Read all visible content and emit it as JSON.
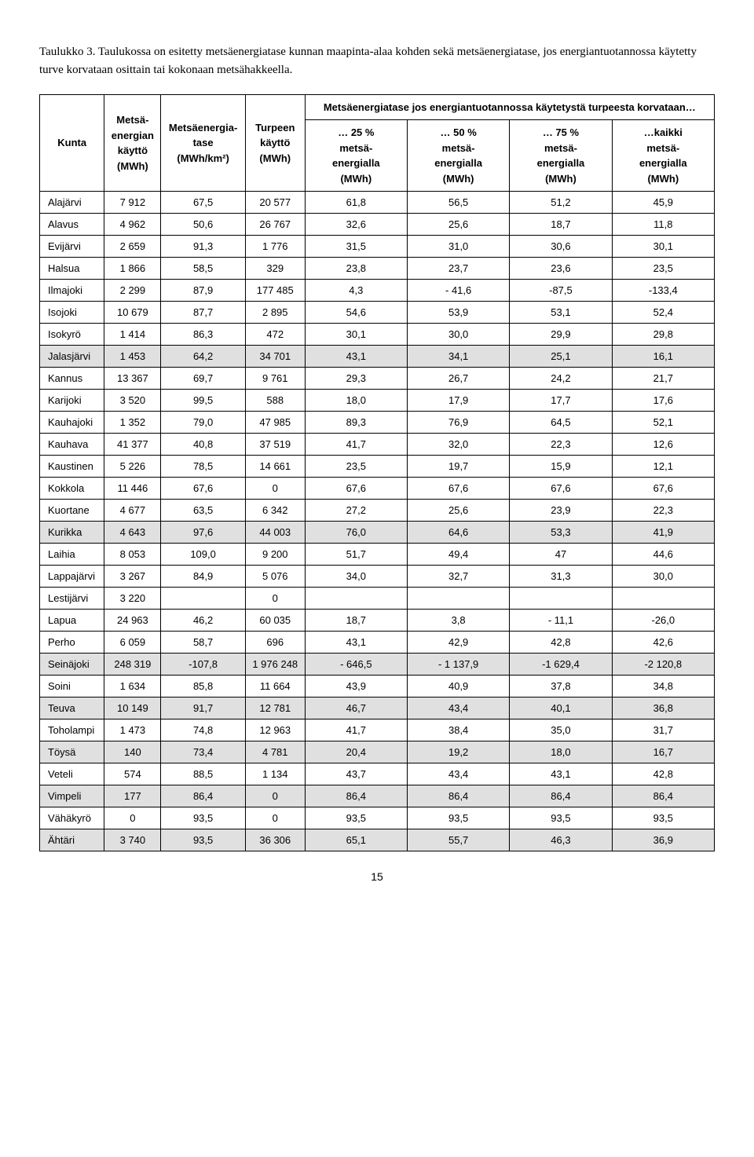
{
  "caption": "Taulukko 3. Taulukossa on esitetty metsäenergiatase kunnan maapinta-alaa kohden sekä metsäenergiatase, jos energiantuotannossa käytetty turve korvataan osittain tai kokonaan metsähakkeella.",
  "superheader": "Metsäenergiatase jos energiantuotannossa käytetystä turpeesta korvataan…",
  "columns": [
    "Kunta",
    "Metsä-\nenergian\nkäyttö\n(MWh)",
    "Metsäenergia-\ntase\n(MWh/km²)",
    "Turpeen\nkäyttö\n(MWh)",
    "… 25 %\nmetsä-\nenergialla\n(MWh)",
    "… 50 %\nmetsä-\nenergialla\n(MWh)",
    "… 75 %\nmetsä-\nenergialla\n(MWh)",
    "…kaikki\nmetsä-\nenergialla\n(MWh)"
  ],
  "rows": [
    {
      "shade": false,
      "cells": [
        "Alajärvi",
        "7 912",
        "67,5",
        "20 577",
        "61,8",
        "56,5",
        "51,2",
        "45,9"
      ]
    },
    {
      "shade": false,
      "cells": [
        "Alavus",
        "4 962",
        "50,6",
        "26 767",
        "32,6",
        "25,6",
        "18,7",
        "11,8"
      ]
    },
    {
      "shade": false,
      "cells": [
        "Evijärvi",
        "2 659",
        "91,3",
        "1 776",
        "31,5",
        "31,0",
        "30,6",
        "30,1"
      ]
    },
    {
      "shade": false,
      "cells": [
        "Halsua",
        "1 866",
        "58,5",
        "329",
        "23,8",
        "23,7",
        "23,6",
        "23,5"
      ]
    },
    {
      "shade": false,
      "cells": [
        "Ilmajoki",
        "2 299",
        "87,9",
        "177 485",
        "4,3",
        "- 41,6",
        "-87,5",
        "-133,4"
      ]
    },
    {
      "shade": false,
      "cells": [
        "Isojoki",
        "10 679",
        "87,7",
        "2 895",
        "54,6",
        "53,9",
        "53,1",
        "52,4"
      ]
    },
    {
      "shade": false,
      "cells": [
        "Isokyrö",
        "1 414",
        "86,3",
        "472",
        "30,1",
        "30,0",
        "29,9",
        "29,8"
      ]
    },
    {
      "shade": true,
      "cells": [
        "Jalasjärvi",
        "1 453",
        "64,2",
        "34 701",
        "43,1",
        "34,1",
        "25,1",
        "16,1"
      ]
    },
    {
      "shade": false,
      "cells": [
        "Kannus",
        "13 367",
        "69,7",
        "9 761",
        "29,3",
        "26,7",
        "24,2",
        "21,7"
      ]
    },
    {
      "shade": false,
      "cells": [
        "Karijoki",
        "3 520",
        "99,5",
        "588",
        "18,0",
        "17,9",
        "17,7",
        "17,6"
      ]
    },
    {
      "shade": false,
      "cells": [
        "Kauhajoki",
        "1 352",
        "79,0",
        "47 985",
        "89,3",
        "76,9",
        "64,5",
        "52,1"
      ]
    },
    {
      "shade": false,
      "cells": [
        "Kauhava",
        "41 377",
        "40,8",
        "37 519",
        "41,7",
        "32,0",
        "22,3",
        "12,6"
      ]
    },
    {
      "shade": false,
      "cells": [
        "Kaustinen",
        "5 226",
        "78,5",
        "14 661",
        "23,5",
        "19,7",
        "15,9",
        "12,1"
      ]
    },
    {
      "shade": false,
      "cells": [
        "Kokkola",
        "11 446",
        "67,6",
        "0",
        "67,6",
        "67,6",
        "67,6",
        "67,6"
      ]
    },
    {
      "shade": false,
      "cells": [
        "Kuortane",
        "4 677",
        "63,5",
        "6 342",
        "27,2",
        "25,6",
        "23,9",
        "22,3"
      ]
    },
    {
      "shade": true,
      "cells": [
        "Kurikka",
        "4 643",
        "97,6",
        "44 003",
        "76,0",
        "64,6",
        "53,3",
        "41,9"
      ]
    },
    {
      "shade": false,
      "cells": [
        "Laihia",
        "8 053",
        "109,0",
        "9 200",
        "51,7",
        "49,4",
        "47",
        "44,6"
      ]
    },
    {
      "shade": false,
      "cells": [
        "Lappajärvi",
        "3 267",
        "84,9",
        "5 076",
        "34,0",
        "32,7",
        "31,3",
        "30,0"
      ]
    },
    {
      "shade": false,
      "cells": [
        "Lestijärvi",
        "3 220",
        "",
        "0",
        "",
        "",
        "",
        ""
      ]
    },
    {
      "shade": false,
      "cells": [
        "Lapua",
        "24 963",
        "46,2",
        "60 035",
        "18,7",
        "3,8",
        "- 11,1",
        "-26,0"
      ]
    },
    {
      "shade": false,
      "cells": [
        "Perho",
        "6 059",
        "58,7",
        "696",
        "43,1",
        "42,9",
        "42,8",
        "42,6"
      ]
    },
    {
      "shade": true,
      "cells": [
        "Seinäjoki",
        "248 319",
        "-107,8",
        "1 976 248",
        "- 646,5",
        "- 1 137,9",
        "-1 629,4",
        "-2 120,8"
      ]
    },
    {
      "shade": false,
      "cells": [
        "Soini",
        "1 634",
        "85,8",
        "11 664",
        "43,9",
        "40,9",
        "37,8",
        "34,8"
      ]
    },
    {
      "shade": true,
      "cells": [
        "Teuva",
        "10 149",
        "91,7",
        "12 781",
        "46,7",
        "43,4",
        "40,1",
        "36,8"
      ]
    },
    {
      "shade": false,
      "cells": [
        "Toholampi",
        "1 473",
        "74,8",
        "12 963",
        "41,7",
        "38,4",
        "35,0",
        "31,7"
      ]
    },
    {
      "shade": true,
      "cells": [
        "Töysä",
        "140",
        "73,4",
        "4 781",
        "20,4",
        "19,2",
        "18,0",
        "16,7"
      ]
    },
    {
      "shade": false,
      "cells": [
        "Veteli",
        "574",
        "88,5",
        "1 134",
        "43,7",
        "43,4",
        "43,1",
        "42,8"
      ]
    },
    {
      "shade": true,
      "cells": [
        "Vimpeli",
        "177",
        "86,4",
        "0",
        "86,4",
        "86,4",
        "86,4",
        "86,4"
      ]
    },
    {
      "shade": false,
      "cells": [
        "Vähäkyrö",
        "0",
        "93,5",
        "0",
        "93,5",
        "93,5",
        "93,5",
        "93,5"
      ]
    },
    {
      "shade": true,
      "cells": [
        "Ähtäri",
        "3 740",
        "93,5",
        "36 306",
        "65,1",
        "55,7",
        "46,3",
        "36,9"
      ]
    }
  ],
  "page_number": "15",
  "style": {
    "caption_fontsize": 15,
    "table_fontsize": 13,
    "shade_color": "#e0e0e0",
    "border_color": "#000000",
    "background": "#ffffff"
  }
}
